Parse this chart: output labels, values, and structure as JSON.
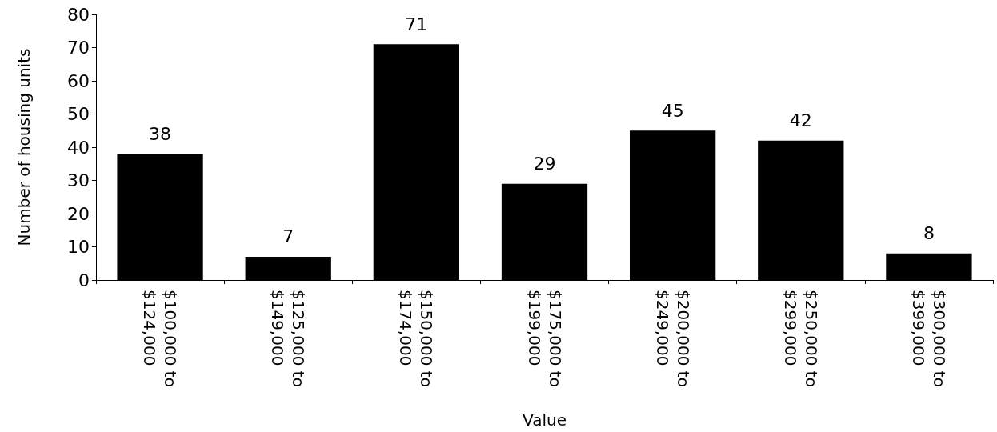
{
  "chart_data": {
    "type": "bar",
    "xlabel": "Value",
    "ylabel": "Number of housing units",
    "categories": [
      "$100,000 to $124,000",
      "$125,000 to $149,000",
      "$150,000 to $174,000",
      "$175,000 to $199,000",
      "$200,000 to $249,000",
      "$250,000 to $299,000",
      "$300,000 to $399,000"
    ],
    "values": [
      38,
      7,
      71,
      29,
      45,
      42,
      8
    ],
    "color": "#000000",
    "ylim": [
      0,
      80
    ],
    "yticks": [
      0,
      10,
      20,
      30,
      40,
      50,
      60,
      70,
      80
    ],
    "data_labels": true,
    "grid": false
  }
}
